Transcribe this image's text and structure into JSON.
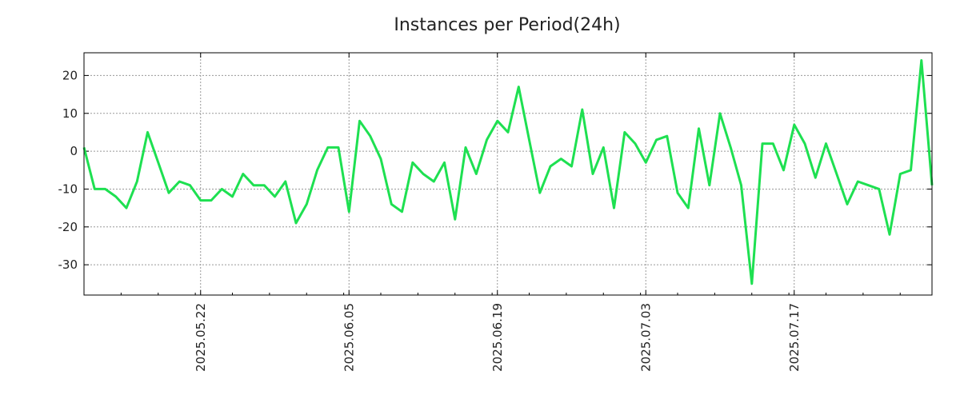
{
  "chart_data": {
    "type": "line",
    "title": "Instances per Period(24h)",
    "xlabel": "",
    "ylabel": "",
    "grid": true,
    "ylim": [
      -38,
      26
    ],
    "xlim": [
      0,
      80
    ],
    "yticks": [
      -30,
      -20,
      -10,
      0,
      10,
      20
    ],
    "y_tick_labels": [
      "-30",
      "-20",
      "-10",
      "0",
      "10",
      "20"
    ],
    "x_major_ticks": [
      {
        "x": 11,
        "label": "2025.05.22"
      },
      {
        "x": 25,
        "label": "2025.06.05"
      },
      {
        "x": 39,
        "label": "2025.06.19"
      },
      {
        "x": 53,
        "label": "2025.07.03"
      },
      {
        "x": 67,
        "label": "2025.07.17"
      }
    ],
    "series": [
      {
        "name": "instances",
        "color": "#1ee051",
        "values": [
          1,
          -10,
          -10,
          -12,
          -15,
          -8,
          5,
          -3,
          -11,
          -8,
          -9,
          -13,
          -13,
          -10,
          -12,
          -6,
          -9,
          -9,
          -12,
          -8,
          -19,
          -14,
          -5,
          1,
          1,
          -16,
          8,
          4,
          -2,
          -14,
          -16,
          -3,
          -6,
          -8,
          -3,
          -18,
          1,
          -6,
          3,
          8,
          5,
          17,
          3,
          -11,
          -4,
          -2,
          -4,
          11,
          -6,
          1,
          -15,
          5,
          2,
          -3,
          3,
          4,
          -11,
          -15,
          6,
          -9,
          10,
          1,
          -9,
          -35,
          2,
          2,
          -5,
          7,
          2,
          -7,
          2,
          -6,
          -14,
          -8,
          -9,
          -10,
          -22,
          -6,
          -5,
          24,
          -9
        ]
      }
    ]
  }
}
